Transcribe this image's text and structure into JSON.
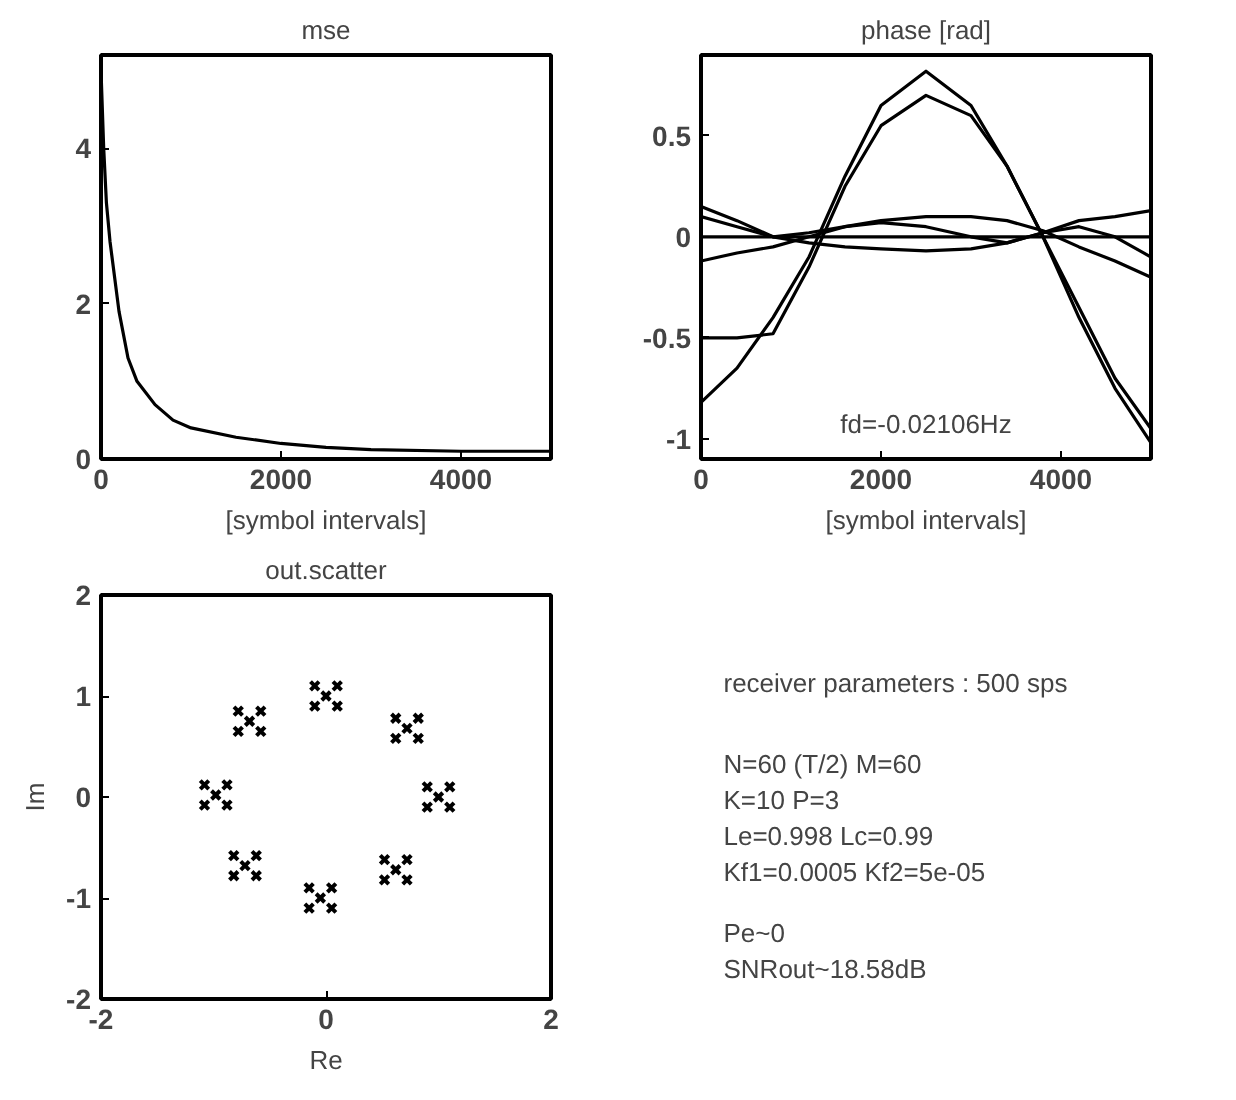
{
  "chart_data": [
    {
      "type": "line",
      "title": "mse",
      "xlabel": "[symbol intervals]",
      "xlim": [
        0,
        5000
      ],
      "ylim": [
        0,
        5.2
      ],
      "xticks": [
        0,
        2000,
        4000
      ],
      "yticks": [
        0,
        2,
        4
      ],
      "series": [
        {
          "color": "#000000",
          "x": [
            0,
            30,
            60,
            100,
            200,
            300,
            400,
            600,
            800,
            1000,
            1500,
            2000,
            2500,
            3000,
            4000,
            5000
          ],
          "values": [
            5.0,
            4.0,
            3.3,
            2.8,
            1.9,
            1.3,
            1.0,
            0.7,
            0.5,
            0.4,
            0.28,
            0.2,
            0.15,
            0.12,
            0.1,
            0.1
          ]
        }
      ]
    },
    {
      "type": "line",
      "title": "phase [rad]",
      "xlabel": "[symbol intervals]",
      "xlim": [
        0,
        5000
      ],
      "ylim": [
        -1.1,
        0.9
      ],
      "xticks": [
        0,
        2000,
        4000
      ],
      "yticks": [
        -1,
        -0.5,
        0,
        0.5
      ],
      "annotations": [
        "fd=-0.02106Hz"
      ],
      "x": [
        0,
        400,
        800,
        1200,
        1600,
        2000,
        2500,
        3000,
        3400,
        3800,
        4200,
        4600,
        5000
      ],
      "series": [
        {
          "color": "#000000",
          "values": [
            -0.82,
            -0.65,
            -0.4,
            -0.1,
            0.3,
            0.65,
            0.82,
            0.65,
            0.35,
            0.0,
            -0.35,
            -0.7,
            -0.95
          ]
        },
        {
          "color": "#000000",
          "values": [
            -0.5,
            -0.5,
            -0.48,
            -0.15,
            0.25,
            0.55,
            0.7,
            0.6,
            0.35,
            0.0,
            -0.4,
            -0.75,
            -1.02
          ]
        },
        {
          "color": "#000000",
          "values": [
            0.15,
            0.08,
            0.0,
            -0.03,
            -0.05,
            -0.06,
            -0.07,
            -0.06,
            -0.03,
            0.02,
            0.08,
            0.1,
            0.13
          ]
        },
        {
          "color": "#000000",
          "values": [
            -0.12,
            -0.08,
            -0.05,
            0.0,
            0.05,
            0.08,
            0.1,
            0.1,
            0.08,
            0.03,
            -0.05,
            -0.12,
            -0.2
          ]
        },
        {
          "color": "#000000",
          "values": [
            0,
            0,
            0,
            0,
            0,
            0,
            0,
            0,
            0,
            0,
            0,
            0,
            0
          ]
        },
        {
          "color": "#000000",
          "values": [
            0.1,
            0.05,
            0.0,
            0.02,
            0.05,
            0.07,
            0.05,
            0.0,
            -0.03,
            0.02,
            0.05,
            0.0,
            -0.1
          ]
        }
      ]
    },
    {
      "type": "scatter",
      "title": "out.scatter",
      "xlabel": "Re",
      "ylabel": "Im",
      "xlim": [
        -2,
        2
      ],
      "ylim": [
        -2,
        2
      ],
      "xticks": [
        -2,
        0,
        2
      ],
      "yticks": [
        -2,
        -1,
        0,
        1,
        2
      ],
      "marker": "cross",
      "series": [
        {
          "color": "#000000",
          "x": [
            0,
            -0.1,
            0.1,
            -0.1,
            0.1,
            0.72,
            0.62,
            0.82,
            0.62,
            0.82,
            1,
            0.9,
            1.1,
            0.9,
            1.1,
            0.62,
            0.52,
            0.72,
            0.52,
            0.72,
            -0.05,
            -0.15,
            0.05,
            -0.15,
            0.05,
            -0.72,
            -0.82,
            -0.62,
            -0.82,
            -0.62,
            -0.98,
            -1.08,
            -0.88,
            -1.08,
            -0.88,
            -0.68,
            -0.78,
            -0.58,
            -0.78,
            -0.58
          ],
          "values": [
            1,
            1.1,
            1.1,
            0.9,
            0.9,
            0.68,
            0.78,
            0.78,
            0.58,
            0.58,
            0,
            0.1,
            0.1,
            -0.1,
            -0.1,
            -0.72,
            -0.62,
            -0.62,
            -0.82,
            -0.82,
            -1,
            -0.9,
            -0.9,
            -1.1,
            -1.1,
            -0.68,
            -0.58,
            -0.58,
            -0.78,
            -0.78,
            0.02,
            0.12,
            0.12,
            -0.08,
            -0.08,
            0.75,
            0.85,
            0.85,
            0.65,
            0.65
          ]
        }
      ]
    },
    {
      "type": "other",
      "annotations": [
        "receiver parameters : 500 sps",
        "N=60 (T/2)  M=60\nK=10 P=3\nLe=0.998 Lc=0.99\nKf1=0.0005 Kf2=5e-05",
        "Pe~0\nSNRout~18.58dB"
      ]
    }
  ]
}
